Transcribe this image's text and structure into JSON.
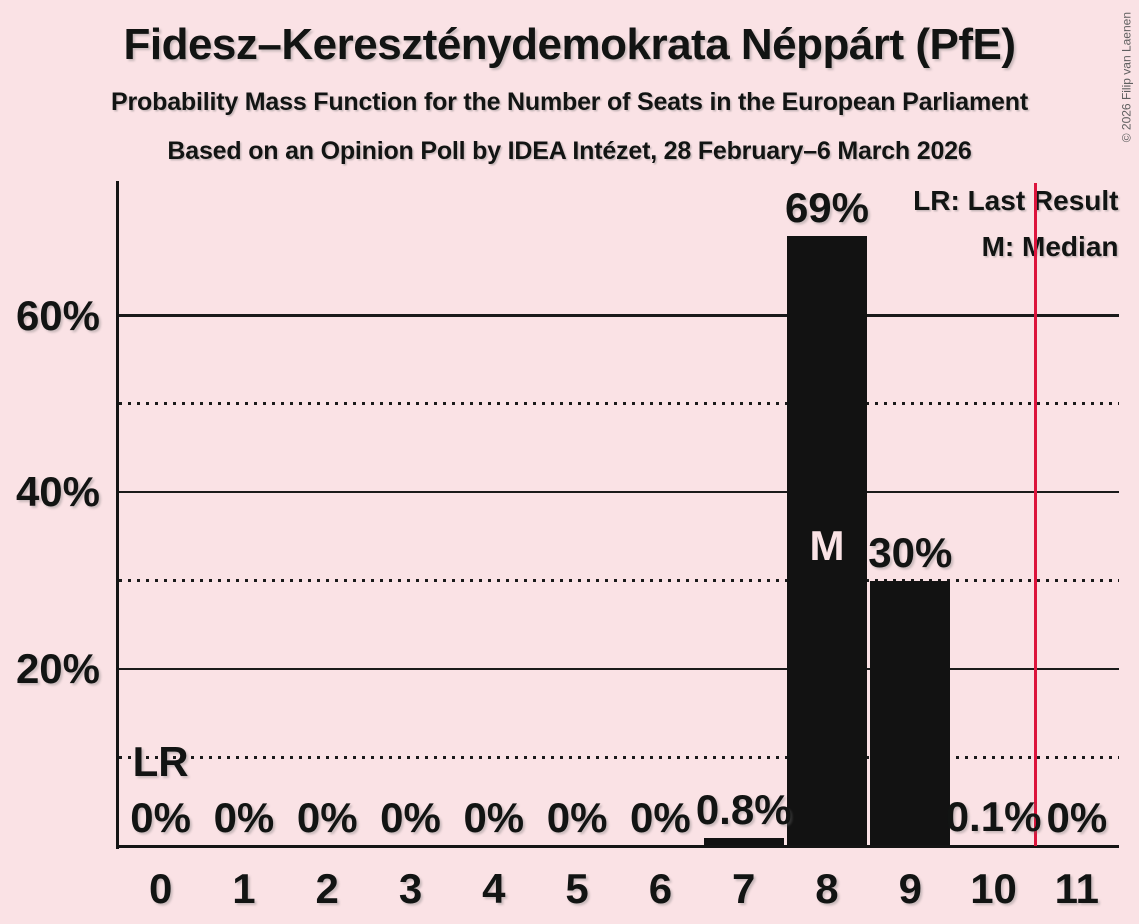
{
  "header": {
    "title": "Fidesz–Kereszténydemokrata Néppárt (PfE)",
    "subtitle1": "Probability Mass Function for the Number of Seats in the European Parliament",
    "subtitle2": "Based on an Opinion Poll by IDEA Intézet, 28 February–6 March 2026"
  },
  "copyright": "© 2026 Filip van Laenen",
  "legend": {
    "last_result": "LR: Last Result",
    "median": "M: Median"
  },
  "colors": {
    "background": "#fae2e5",
    "bar": "#121212",
    "text": "#121413",
    "gridline": "#1a1a1a",
    "last_result_line": "#dc143c",
    "median_letter": "#fae2e5",
    "copyright": "#5f5f5f"
  },
  "chart_data": {
    "type": "bar",
    "title": "Fidesz–Kereszténydemokrata Néppárt (PfE)",
    "subtitle": "Probability Mass Function for the Number of Seats in the European Parliament",
    "source_line": "Based on an Opinion Poll by IDEA Intézet, 28 February–6 March 2026",
    "xlabel": "",
    "ylabel": "",
    "categories": [
      "0",
      "1",
      "2",
      "3",
      "4",
      "5",
      "6",
      "7",
      "8",
      "9",
      "10",
      "11"
    ],
    "values": [
      0,
      0,
      0,
      0,
      0,
      0,
      0,
      0.8,
      69,
      30,
      0.1,
      0
    ],
    "value_labels": [
      "0%",
      "0%",
      "0%",
      "0%",
      "0%",
      "0%",
      "0%",
      "0.8%",
      "69%",
      "30%",
      "0.1%",
      "0%"
    ],
    "ylim": [
      0,
      75
    ],
    "y_ticks": [
      {
        "pct": 20,
        "label": "20%"
      },
      {
        "pct": 40,
        "label": "40%"
      },
      {
        "pct": 60,
        "label": "60%"
      }
    ],
    "solid_gridlines": [
      20,
      40,
      60
    ],
    "dotted_gridlines": [
      10,
      30,
      50
    ],
    "grid": "horizontal",
    "legend_position": "top-right",
    "median_seat": 8,
    "median_marker": "M",
    "last_result_x": 10.5,
    "lr_annotation": {
      "text": "LR",
      "seat": 0,
      "pct": 9.5
    }
  }
}
